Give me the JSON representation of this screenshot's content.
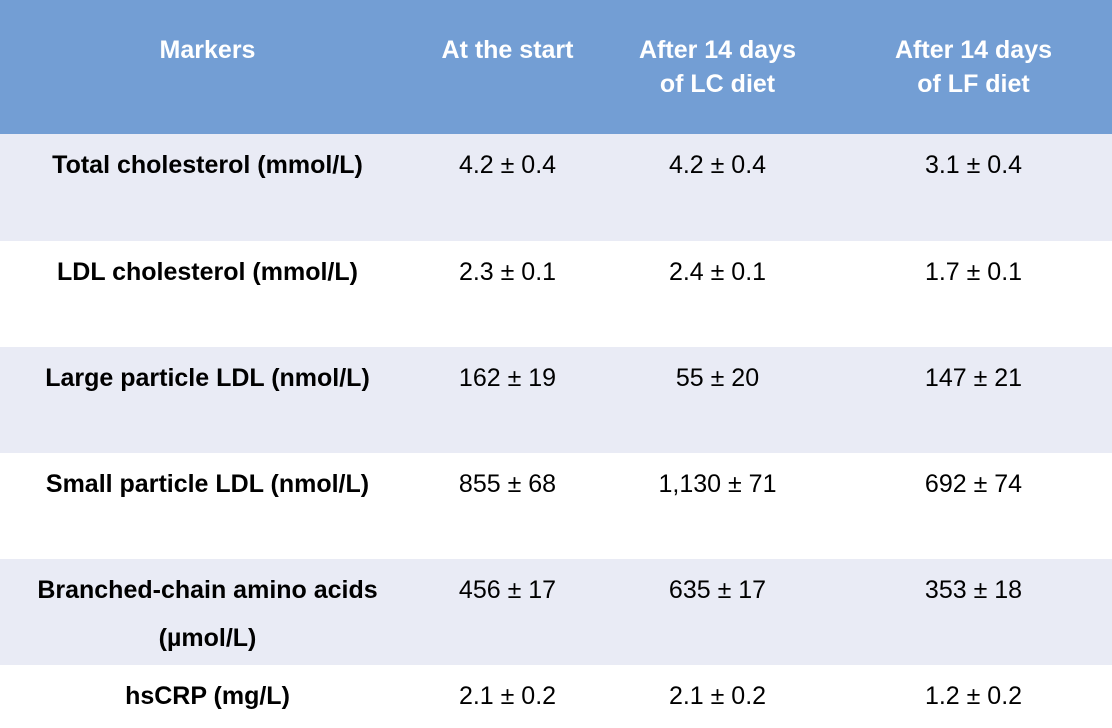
{
  "header": {
    "markers": "Markers",
    "start": "At the start",
    "lc": [
      "After 14 days",
      "of LC diet"
    ],
    "lf": [
      "After 14 days",
      "of LF diet"
    ]
  },
  "rows": [
    {
      "label": [
        "Total cholesterol (mmol/L)"
      ],
      "start": "4.2 ± 0.4",
      "lc": "4.2 ± 0.4",
      "lf": "3.1 ± 0.4"
    },
    {
      "label": [
        "LDL cholesterol (mmol/L)"
      ],
      "start": "2.3 ± 0.1",
      "lc": "2.4 ± 0.1",
      "lf": "1.7 ± 0.1"
    },
    {
      "label": [
        "Large particle LDL (nmol/L)"
      ],
      "start": "162 ± 19",
      "lc": "55 ± 20",
      "lf": "147 ± 21"
    },
    {
      "label": [
        "Small particle LDL (nmol/L)"
      ],
      "start": "855 ± 68",
      "lc": "1,130 ± 71",
      "lf": "692 ± 74"
    },
    {
      "label": [
        "Branched-chain amino acids",
        "(µmol/L)"
      ],
      "start": "456 ± 17",
      "lc": "635 ± 17",
      "lf": "353 ± 18"
    },
    {
      "label": [
        "hsCRP (mg/L)"
      ],
      "start": "2.1 ± 0.2",
      "lc": "2.1 ± 0.2",
      "lf": "1.2 ± 0.2"
    }
  ],
  "colors": {
    "header_bg": "#739ed4",
    "header_text": "#ffffff",
    "band_shade": "#e9ebf5",
    "band_plain": "#ffffff"
  }
}
